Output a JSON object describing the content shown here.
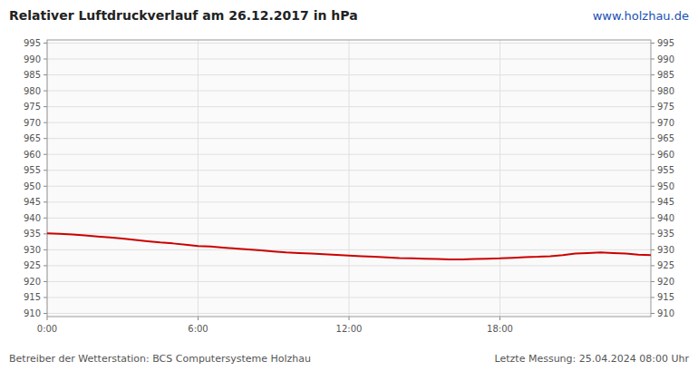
{
  "chart_data": {
    "type": "line",
    "title": "Relativer Luftdruckverlauf am 26.12.2017 in hPa",
    "annotations": [
      "www.holzhau.de",
      "Betreiber der Wetterstation: BCS Computersysteme Holzhau",
      "Letzte Messung: 25.04.2024 08:00 Uhr"
    ],
    "x": [
      0,
      30,
      60,
      90,
      120,
      150,
      180,
      210,
      240,
      270,
      300,
      330,
      360,
      390,
      420,
      450,
      480,
      510,
      540,
      570,
      600,
      630,
      660,
      690,
      720,
      750,
      780,
      810,
      840,
      870,
      900,
      930,
      960,
      990,
      1020,
      1050,
      1080,
      1110,
      1140,
      1170,
      1200,
      1230,
      1260,
      1290,
      1320,
      1350,
      1380,
      1410,
      1440
    ],
    "values": [
      935.2,
      935.0,
      934.8,
      934.5,
      934.2,
      933.9,
      933.5,
      933.1,
      932.7,
      932.3,
      932.0,
      931.6,
      931.2,
      931.0,
      930.7,
      930.4,
      930.1,
      929.8,
      929.5,
      929.2,
      929.0,
      928.8,
      928.6,
      928.4,
      928.2,
      928.0,
      927.8,
      927.6,
      927.4,
      927.3,
      927.2,
      927.1,
      927.0,
      927.0,
      927.1,
      927.2,
      927.3,
      927.5,
      927.7,
      927.8,
      928.0,
      928.3,
      928.8,
      929.0,
      929.2,
      929.0,
      928.8,
      928.5,
      928.3
    ],
    "color": "#cc0000",
    "xlim": [
      0,
      1440
    ],
    "xticks": [
      {
        "value": 0,
        "label": "0:00"
      },
      {
        "value": 360,
        "label": "6:00"
      },
      {
        "value": 720,
        "label": "12:00"
      },
      {
        "value": 1080,
        "label": "18:00"
      }
    ],
    "ylim": [
      909,
      996
    ],
    "yticks": [
      910,
      915,
      920,
      925,
      930,
      935,
      940,
      945,
      950,
      955,
      960,
      965,
      970,
      975,
      980,
      985,
      990,
      995
    ],
    "y2lim": [
      909,
      996
    ],
    "y2ticks": [
      910,
      915,
      920,
      925,
      930,
      935,
      940,
      945,
      950,
      955,
      960,
      965,
      970,
      975,
      980,
      985,
      990,
      995
    ],
    "grid": true
  }
}
